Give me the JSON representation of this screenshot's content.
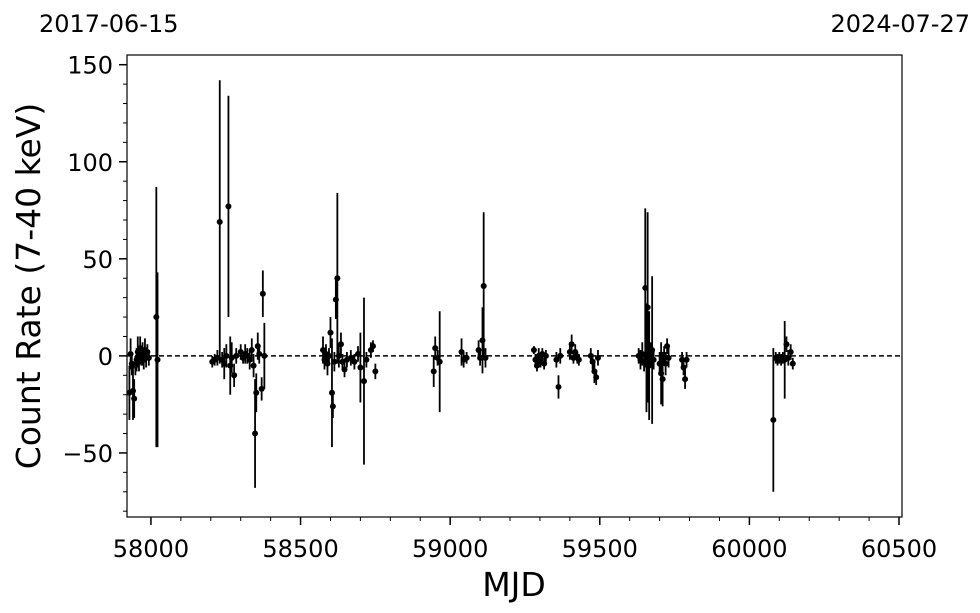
{
  "chart_data": {
    "type": "scatter",
    "title": "",
    "xlabel": "MJD",
    "ylabel": "Count Rate (7-40 keV)",
    "xlim": [
      57920,
      60510
    ],
    "ylim": [
      -83,
      155
    ],
    "x_ticks": [
      58000,
      58500,
      59000,
      59500,
      60000,
      60500
    ],
    "y_ticks": [
      -50,
      0,
      50,
      100,
      150
    ],
    "x_tick_labels": [
      "58000",
      "58500",
      "59000",
      "59500",
      "60000",
      "60500"
    ],
    "y_tick_labels": [
      "−50",
      "0",
      "50",
      "100",
      "150"
    ],
    "top_left_date": "2017-06-15",
    "top_right_date": "2024-07-27",
    "reference_line": {
      "y": 0,
      "style": "dashed"
    },
    "grid": false,
    "legend": "none",
    "marker_color": "#000000",
    "series": [
      {
        "points": [
          {
            "x": 57928,
            "y": -19,
            "err": 14
          },
          {
            "x": 57932,
            "y": 1,
            "err": 8
          },
          {
            "x": 57936,
            "y": -4,
            "err": 6
          },
          {
            "x": 57940,
            "y": -18,
            "err": 15
          },
          {
            "x": 57944,
            "y": -22,
            "err": 10
          },
          {
            "x": 57948,
            "y": -5,
            "err": 5
          },
          {
            "x": 57952,
            "y": -2,
            "err": 6
          },
          {
            "x": 57956,
            "y": 2,
            "err": 8
          },
          {
            "x": 57960,
            "y": -3,
            "err": 5
          },
          {
            "x": 57964,
            "y": 4,
            "err": 6
          },
          {
            "x": 57968,
            "y": 0,
            "err": 5
          },
          {
            "x": 57972,
            "y": 1,
            "err": 6
          },
          {
            "x": 57976,
            "y": -2,
            "err": 5
          },
          {
            "x": 57980,
            "y": 3,
            "err": 6
          },
          {
            "x": 57984,
            "y": -1,
            "err": 5
          },
          {
            "x": 57988,
            "y": 2,
            "err": 4
          },
          {
            "x": 57993,
            "y": -1,
            "err": 4
          },
          {
            "x": 58018,
            "y": 20,
            "err": 67
          },
          {
            "x": 58022,
            "y": -2,
            "err": 45
          },
          {
            "x": 58205,
            "y": -3,
            "err": 3
          },
          {
            "x": 58213,
            "y": -2,
            "err": 3
          },
          {
            "x": 58222,
            "y": -1,
            "err": 4
          },
          {
            "x": 58230,
            "y": 69,
            "err": 73
          },
          {
            "x": 58238,
            "y": -2,
            "err": 4
          },
          {
            "x": 58245,
            "y": -4,
            "err": 8
          },
          {
            "x": 58252,
            "y": 0,
            "err": 6
          },
          {
            "x": 58259,
            "y": 77,
            "err": 57
          },
          {
            "x": 58265,
            "y": -5,
            "err": 15
          },
          {
            "x": 58270,
            "y": -1,
            "err": 8
          },
          {
            "x": 58278,
            "y": -10,
            "err": 6
          },
          {
            "x": 58285,
            "y": 0,
            "err": 4
          },
          {
            "x": 58300,
            "y": 2,
            "err": 4
          },
          {
            "x": 58308,
            "y": -1,
            "err": 3
          },
          {
            "x": 58315,
            "y": 1,
            "err": 5
          },
          {
            "x": 58322,
            "y": 0,
            "err": 4
          },
          {
            "x": 58330,
            "y": -2,
            "err": 5
          },
          {
            "x": 58337,
            "y": 3,
            "err": 6
          },
          {
            "x": 58343,
            "y": -5,
            "err": 6
          },
          {
            "x": 58348,
            "y": -40,
            "err": 28
          },
          {
            "x": 58352,
            "y": -19,
            "err": 10
          },
          {
            "x": 58357,
            "y": 5,
            "err": 7
          },
          {
            "x": 58362,
            "y": 1,
            "err": 5
          },
          {
            "x": 58370,
            "y": -17,
            "err": 6
          },
          {
            "x": 58374,
            "y": 32,
            "err": 12
          },
          {
            "x": 58379,
            "y": 0,
            "err": 17
          },
          {
            "x": 58575,
            "y": 3,
            "err": 7
          },
          {
            "x": 58580,
            "y": -2,
            "err": 5
          },
          {
            "x": 58585,
            "y": 1,
            "err": 5
          },
          {
            "x": 58590,
            "y": -4,
            "err": 6
          },
          {
            "x": 58595,
            "y": 0,
            "err": 4
          },
          {
            "x": 58600,
            "y": 12,
            "err": 8
          },
          {
            "x": 58605,
            "y": -19,
            "err": 28
          },
          {
            "x": 58608,
            "y": -26,
            "err": 6
          },
          {
            "x": 58613,
            "y": -3,
            "err": 5
          },
          {
            "x": 58618,
            "y": 29,
            "err": 10
          },
          {
            "x": 58623,
            "y": 40,
            "err": 44
          },
          {
            "x": 58628,
            "y": 0,
            "err": 6
          },
          {
            "x": 58635,
            "y": 6,
            "err": 6
          },
          {
            "x": 58640,
            "y": -3,
            "err": 4
          },
          {
            "x": 58647,
            "y": -7,
            "err": 4
          },
          {
            "x": 58655,
            "y": -2,
            "err": 4
          },
          {
            "x": 58668,
            "y": -1,
            "err": 4
          },
          {
            "x": 58680,
            "y": -3,
            "err": 4
          },
          {
            "x": 58692,
            "y": 1,
            "err": 4
          },
          {
            "x": 58700,
            "y": -6,
            "err": 18
          },
          {
            "x": 58712,
            "y": -13,
            "err": 43
          },
          {
            "x": 58720,
            "y": -2,
            "err": 4
          },
          {
            "x": 58735,
            "y": 3,
            "err": 4
          },
          {
            "x": 58742,
            "y": 5,
            "err": 3
          },
          {
            "x": 58750,
            "y": -8,
            "err": 4
          },
          {
            "x": 58945,
            "y": -8,
            "err": 8
          },
          {
            "x": 58950,
            "y": 4,
            "err": 6
          },
          {
            "x": 58958,
            "y": -1,
            "err": 4
          },
          {
            "x": 58965,
            "y": -3,
            "err": 26
          },
          {
            "x": 59038,
            "y": 2,
            "err": 7
          },
          {
            "x": 59045,
            "y": -2,
            "err": 4
          },
          {
            "x": 59055,
            "y": -1,
            "err": 3
          },
          {
            "x": 59095,
            "y": 3,
            "err": 5
          },
          {
            "x": 59100,
            "y": -1,
            "err": 4
          },
          {
            "x": 59108,
            "y": 8,
            "err": 17
          },
          {
            "x": 59112,
            "y": 36,
            "err": 38
          },
          {
            "x": 59118,
            "y": -1,
            "err": 5
          },
          {
            "x": 59280,
            "y": 3,
            "err": 2
          },
          {
            "x": 59285,
            "y": -2,
            "err": 3
          },
          {
            "x": 59290,
            "y": -5,
            "err": 3
          },
          {
            "x": 59296,
            "y": 0,
            "err": 4
          },
          {
            "x": 59302,
            "y": -3,
            "err": 3
          },
          {
            "x": 59308,
            "y": 1,
            "err": 3
          },
          {
            "x": 59314,
            "y": -4,
            "err": 3
          },
          {
            "x": 59320,
            "y": 0,
            "err": 3
          },
          {
            "x": 59355,
            "y": -2,
            "err": 4
          },
          {
            "x": 59362,
            "y": -16,
            "err": 6
          },
          {
            "x": 59368,
            "y": 0,
            "err": 4
          },
          {
            "x": 59400,
            "y": 2,
            "err": 4
          },
          {
            "x": 59406,
            "y": 6,
            "err": 5
          },
          {
            "x": 59412,
            "y": -1,
            "err": 3
          },
          {
            "x": 59418,
            "y": 2,
            "err": 4
          },
          {
            "x": 59425,
            "y": -1,
            "err": 3
          },
          {
            "x": 59430,
            "y": -2,
            "err": 3
          },
          {
            "x": 59470,
            "y": 0,
            "err": 4
          },
          {
            "x": 59476,
            "y": -3,
            "err": 4
          },
          {
            "x": 59482,
            "y": -8,
            "err": 6
          },
          {
            "x": 59488,
            "y": -11,
            "err": 4
          },
          {
            "x": 59494,
            "y": -1,
            "err": 4
          },
          {
            "x": 59630,
            "y": 0,
            "err": 4
          },
          {
            "x": 59636,
            "y": -2,
            "err": 5
          },
          {
            "x": 59642,
            "y": 1,
            "err": 6
          },
          {
            "x": 59648,
            "y": -3,
            "err": 5
          },
          {
            "x": 59652,
            "y": 35,
            "err": 41
          },
          {
            "x": 59656,
            "y": -1,
            "err": 28
          },
          {
            "x": 59660,
            "y": 25,
            "err": 49
          },
          {
            "x": 59665,
            "y": -5,
            "err": 28
          },
          {
            "x": 59670,
            "y": 1,
            "err": 6
          },
          {
            "x": 59675,
            "y": 3,
            "err": 38
          },
          {
            "x": 59680,
            "y": -2,
            "err": 5
          },
          {
            "x": 59700,
            "y": -4,
            "err": 6
          },
          {
            "x": 59705,
            "y": -9,
            "err": 16
          },
          {
            "x": 59710,
            "y": -12,
            "err": 14
          },
          {
            "x": 59715,
            "y": 0,
            "err": 5
          },
          {
            "x": 59720,
            "y": -4,
            "err": 6
          },
          {
            "x": 59725,
            "y": 5,
            "err": 4
          },
          {
            "x": 59730,
            "y": -1,
            "err": 5
          },
          {
            "x": 59775,
            "y": -2,
            "err": 4
          },
          {
            "x": 59780,
            "y": -6,
            "err": 4
          },
          {
            "x": 59785,
            "y": -12,
            "err": 5
          },
          {
            "x": 59790,
            "y": -2,
            "err": 4
          },
          {
            "x": 60080,
            "y": -33,
            "err": 37
          },
          {
            "x": 60088,
            "y": -1,
            "err": 3
          },
          {
            "x": 60094,
            "y": -2,
            "err": 3
          },
          {
            "x": 60100,
            "y": -1,
            "err": 3
          },
          {
            "x": 60106,
            "y": -2,
            "err": 3
          },
          {
            "x": 60112,
            "y": -1,
            "err": 3
          },
          {
            "x": 60118,
            "y": -2,
            "err": 20
          },
          {
            "x": 60124,
            "y": 6,
            "err": 4
          },
          {
            "x": 60130,
            "y": -1,
            "err": 4
          },
          {
            "x": 60138,
            "y": 2,
            "err": 4
          },
          {
            "x": 60145,
            "y": -4,
            "err": 3
          }
        ]
      }
    ]
  }
}
